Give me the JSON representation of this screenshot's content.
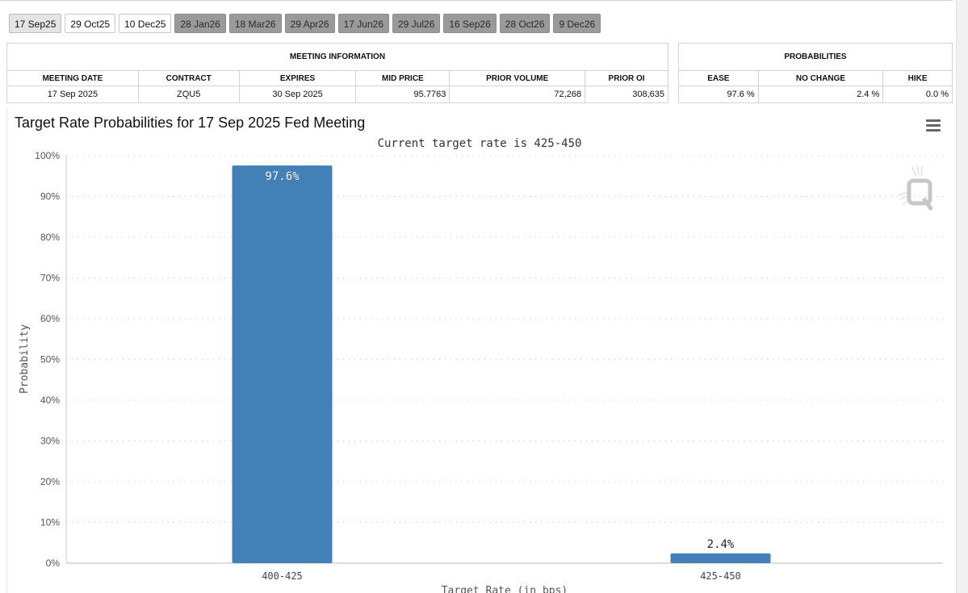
{
  "tabs": [
    {
      "label": "17 Sep25",
      "state": "active"
    },
    {
      "label": "29 Oct25",
      "state": "light"
    },
    {
      "label": "10 Dec25",
      "state": "light"
    },
    {
      "label": "28 Jan26",
      "state": "dark"
    },
    {
      "label": "18 Mar26",
      "state": "dark"
    },
    {
      "label": "29 Apr26",
      "state": "dark"
    },
    {
      "label": "17 Jun26",
      "state": "dark"
    },
    {
      "label": "29 Jul26",
      "state": "dark"
    },
    {
      "label": "16 Sep26",
      "state": "dark"
    },
    {
      "label": "28 Oct26",
      "state": "dark"
    },
    {
      "label": "9 Dec26",
      "state": "dark"
    }
  ],
  "meeting_info": {
    "header": "MEETING INFORMATION",
    "columns": [
      "MEETING DATE",
      "CONTRACT",
      "EXPIRES",
      "MID PRICE",
      "PRIOR VOLUME",
      "PRIOR OI"
    ],
    "row": [
      "17 Sep 2025",
      "ZQU5",
      "30 Sep 2025",
      "95.7763",
      "72,268",
      "308,635"
    ]
  },
  "probabilities": {
    "header": "PROBABILITIES",
    "columns": [
      "EASE",
      "NO CHANGE",
      "HIKE"
    ],
    "row": [
      "97.6 %",
      "2.4 %",
      "0.0 %"
    ]
  },
  "chart_title": "Target Rate Probabilities for 17 Sep 2025 Fed Meeting",
  "chart_data": {
    "type": "bar",
    "subtitle": "Current target rate is 425-450",
    "categories": [
      "400-425",
      "425-450"
    ],
    "values": [
      97.6,
      2.4
    ],
    "data_labels": [
      "97.6%",
      "2.4%"
    ],
    "xlabel": "Target Rate (in bps)",
    "ylabel": "Probability",
    "ylim": [
      0,
      100
    ],
    "yticks": [
      0,
      10,
      20,
      30,
      40,
      50,
      60,
      70,
      80,
      90,
      100
    ],
    "ytick_labels": [
      "0%",
      "10%",
      "20%",
      "30%",
      "40%",
      "50%",
      "60%",
      "70%",
      "80%",
      "90%",
      "100%"
    ],
    "grid": true,
    "legend": "none",
    "bar_color": "#4380b7"
  },
  "icons": {
    "menu": "hamburger-menu-icon",
    "watermark": "q-logo-watermark"
  }
}
